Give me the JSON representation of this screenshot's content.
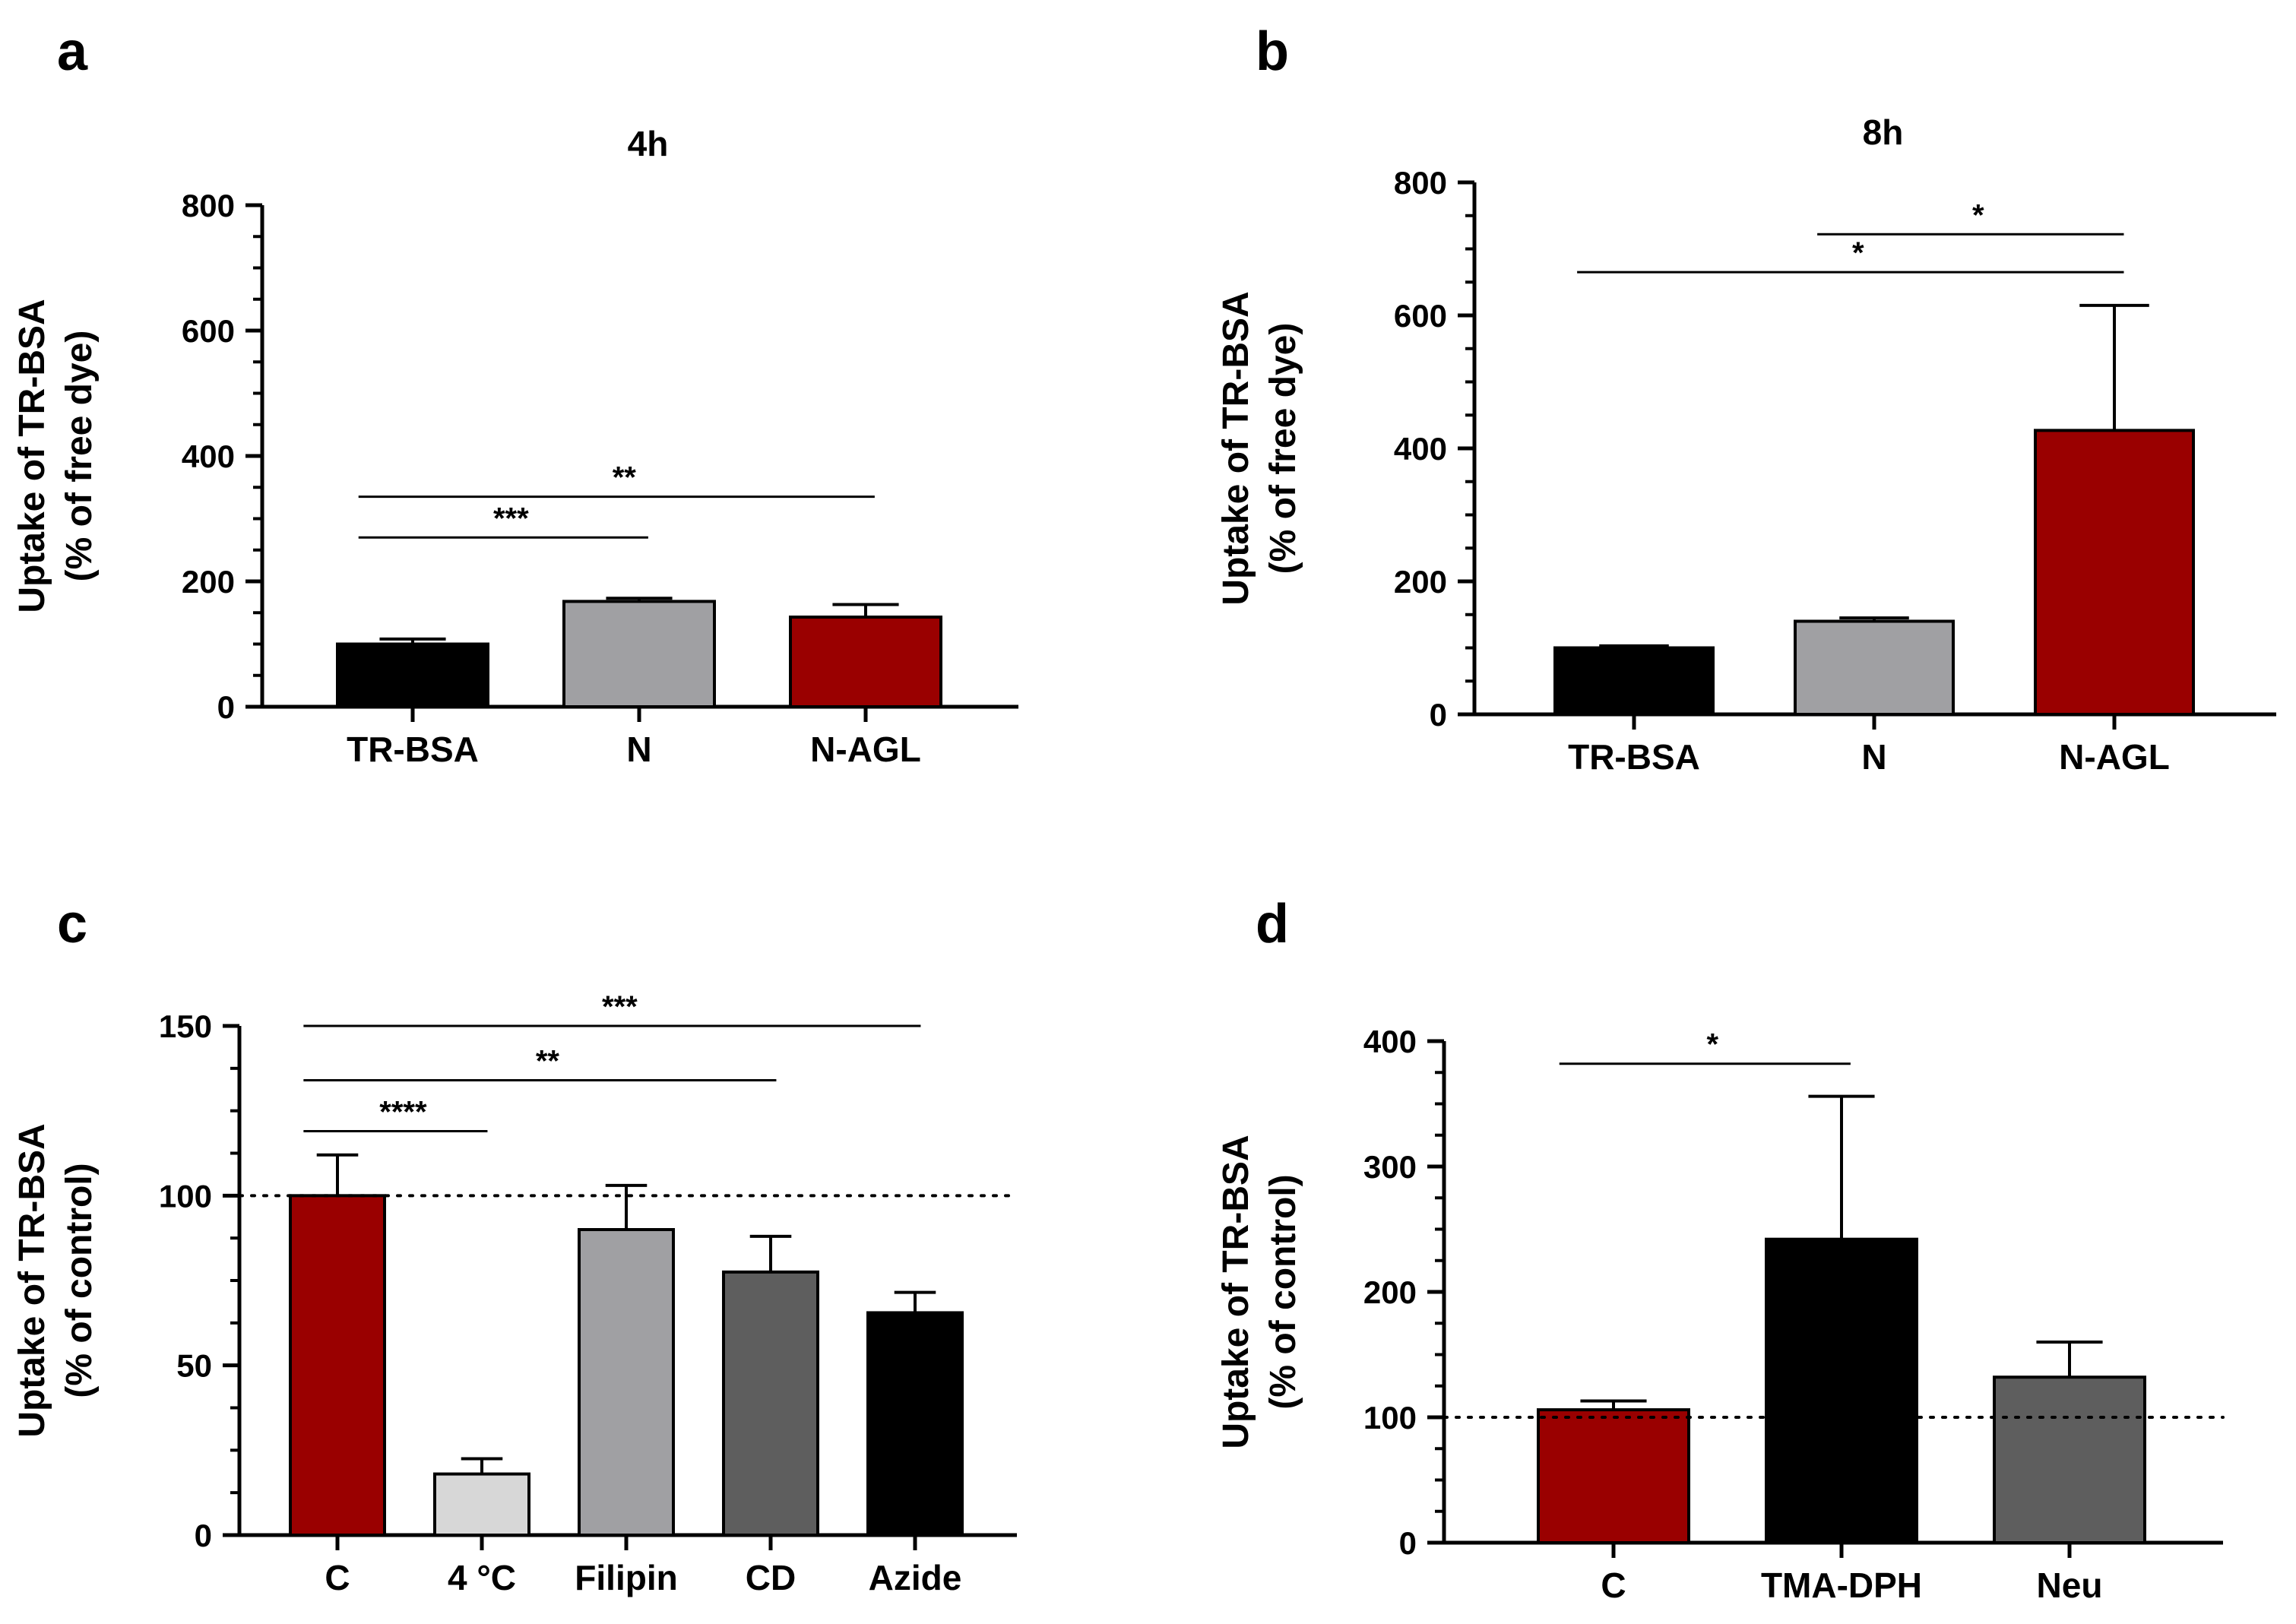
{
  "chart_data": [
    {
      "panel": "a",
      "type": "bar",
      "title": "4h",
      "ylabel_lines": [
        "Uptake of TR-BSA",
        "(% of free dye)"
      ],
      "xlabel": "",
      "categories": [
        "TR-BSA",
        "N",
        "N-AGL"
      ],
      "values": [
        100,
        168,
        143
      ],
      "errors": [
        8,
        5,
        20
      ],
      "colors": [
        "#000000",
        "#a0a0a3",
        "#9a0000"
      ],
      "yticks": [
        0,
        200,
        400,
        600,
        800
      ],
      "ylim": [
        0,
        800
      ],
      "reference_line": null,
      "significance": [
        {
          "from": 0,
          "to": 1,
          "y": 270,
          "label": "***"
        },
        {
          "from": 0,
          "to": 2,
          "y": 335,
          "label": "**"
        }
      ]
    },
    {
      "panel": "b",
      "type": "bar",
      "title": "8h",
      "ylabel_lines": [
        "Uptake of TR-BSA",
        "(% of free dye)"
      ],
      "xlabel": "",
      "categories": [
        "TR-BSA",
        "N",
        "N-AGL"
      ],
      "values": [
        100,
        140,
        427
      ],
      "errors": [
        3,
        5,
        188
      ],
      "colors": [
        "#000000",
        "#a0a0a3",
        "#9a0000"
      ],
      "yticks": [
        0,
        200,
        400,
        600,
        800
      ],
      "ylim": [
        0,
        800
      ],
      "reference_line": null,
      "significance": [
        {
          "from": 0,
          "to": 2,
          "y": 665,
          "label": "*"
        },
        {
          "from": 1,
          "to": 2,
          "y": 722,
          "label": "*"
        }
      ]
    },
    {
      "panel": "c",
      "type": "bar",
      "title": "",
      "ylabel_lines": [
        "Uptake of TR-BSA",
        "(% of control)"
      ],
      "xlabel": "",
      "categories": [
        "C",
        "4 °C",
        "Filipin",
        "CD",
        "Azide"
      ],
      "values": [
        100,
        18,
        90,
        77.5,
        65.5
      ],
      "errors": [
        12,
        4.5,
        13,
        10.5,
        6
      ],
      "colors": [
        "#9a0000",
        "#d7d7d7",
        "#a0a0a3",
        "#5e5e5e",
        "#000000"
      ],
      "yticks": [
        0,
        50,
        100,
        150
      ],
      "ylim": [
        0,
        150
      ],
      "reference_line": 100,
      "significance": [
        {
          "from": 0,
          "to": 1,
          "y": 119,
          "label": "****"
        },
        {
          "from": 0,
          "to": 3,
          "y": 134,
          "label": "**"
        },
        {
          "from": 0,
          "to": 4,
          "y": 150,
          "label": "***"
        }
      ]
    },
    {
      "panel": "d",
      "type": "bar",
      "title": "",
      "ylabel_lines": [
        "Uptake of TR-BSA",
        "(% of control)"
      ],
      "xlabel": "",
      "categories": [
        "C",
        "TMA-DPH",
        "Neu"
      ],
      "values": [
        106,
        242,
        132
      ],
      "errors": [
        7,
        114,
        28
      ],
      "colors": [
        "#9a0000",
        "#000000",
        "#5e5e5e"
      ],
      "yticks": [
        0,
        100,
        200,
        300,
        400
      ],
      "ylim": [
        0,
        400
      ],
      "reference_line": 100,
      "significance": [
        {
          "from": 0,
          "to": 1,
          "y": 382,
          "label": "*"
        }
      ]
    }
  ]
}
